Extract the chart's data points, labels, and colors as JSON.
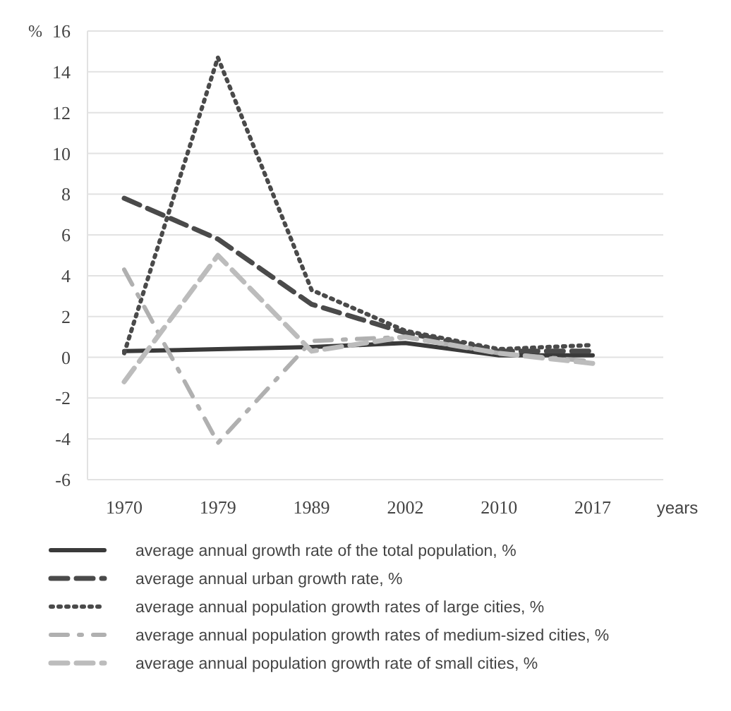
{
  "chart_data": {
    "type": "line",
    "ylabel": "%",
    "xlabel": "years",
    "categories": [
      "1970",
      "1979",
      "1989",
      "2002",
      "2010",
      "2017"
    ],
    "ylim": [
      -6,
      16
    ],
    "yticks": [
      -6,
      -4,
      -2,
      0,
      2,
      4,
      6,
      8,
      10,
      12,
      14,
      16
    ],
    "grid": "y",
    "legend": "bottom",
    "series": [
      {
        "name": "average annual growth rate of the total population, %",
        "color": "#3a3a3a",
        "line_style": "solid",
        "values": [
          0.3,
          0.4,
          0.5,
          0.7,
          0.1,
          0.1
        ]
      },
      {
        "name": "average annual urban growth rate, %",
        "color": "#4a4a4a",
        "line_style": "dashed",
        "values": [
          7.8,
          5.8,
          2.6,
          1.2,
          0.3,
          0.3
        ]
      },
      {
        "name": "average annual population growth rates of large cities, %",
        "color": "#4a4a4a",
        "line_style": "dotted",
        "values": [
          0.2,
          14.7,
          3.3,
          1.3,
          0.4,
          0.6
        ]
      },
      {
        "name": "average annual population growth rates of medium-sized cities, %",
        "color": "#b0b0b0",
        "line_style": "dashdot",
        "values": [
          4.3,
          -4.2,
          0.8,
          1.0,
          0.2,
          -0.2
        ]
      },
      {
        "name": "average annual population growth rate of small cities, %",
        "color": "#bcbcbc",
        "line_style": "dashed",
        "values": [
          -1.2,
          5.0,
          0.3,
          1.0,
          0.2,
          -0.3
        ]
      }
    ]
  }
}
